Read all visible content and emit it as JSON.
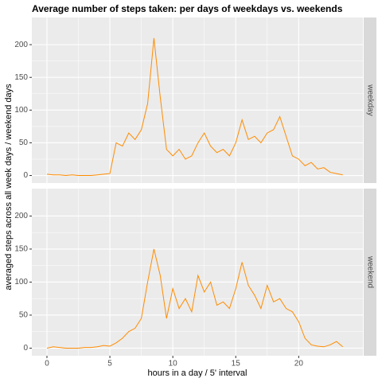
{
  "chart_data": {
    "type": "line",
    "title": "Average number of steps taken: per days of weekdays vs. weekends",
    "xlabel": "hours in a day / 5' interval",
    "ylabel": "averaged steps across all week days / weekend days",
    "x": [
      0,
      0.5,
      1,
      1.5,
      2,
      2.5,
      3,
      3.5,
      4,
      4.5,
      5,
      5.5,
      6,
      6.5,
      7,
      7.5,
      8,
      8.5,
      9,
      9.5,
      10,
      10.5,
      11,
      11.5,
      12,
      12.5,
      13,
      13.5,
      14,
      14.5,
      15,
      15.5,
      16,
      16.5,
      17,
      17.5,
      18,
      18.5,
      19,
      19.5,
      20,
      20.5,
      21,
      21.5,
      22,
      22.5,
      23,
      23.5
    ],
    "series": [
      {
        "name": "weekday",
        "color": "#ff8c00",
        "values": [
          2,
          1,
          1,
          0,
          1,
          0,
          0,
          0,
          1,
          2,
          3,
          50,
          45,
          65,
          55,
          70,
          110,
          210,
          120,
          40,
          30,
          40,
          25,
          30,
          50,
          65,
          45,
          35,
          40,
          30,
          50,
          85,
          55,
          60,
          50,
          65,
          70,
          90,
          60,
          30,
          25,
          15,
          20,
          10,
          12,
          5,
          3,
          1
        ]
      },
      {
        "name": "weekend",
        "color": "#ff8c00",
        "values": [
          0,
          2,
          1,
          0,
          0,
          0,
          1,
          1,
          2,
          4,
          3,
          8,
          15,
          25,
          30,
          45,
          100,
          150,
          110,
          45,
          90,
          60,
          75,
          55,
          110,
          85,
          100,
          65,
          70,
          60,
          90,
          130,
          95,
          80,
          60,
          95,
          70,
          75,
          60,
          55,
          40,
          15,
          5,
          3,
          2,
          5,
          10,
          2
        ]
      }
    ],
    "xlim": [
      -1.2,
      25.1
    ],
    "ylim": [
      -11.5,
      241.5
    ],
    "xticks": [
      0,
      5,
      10,
      15,
      20
    ],
    "yticks": [
      0,
      50,
      100,
      150,
      200
    ],
    "grid": true
  }
}
